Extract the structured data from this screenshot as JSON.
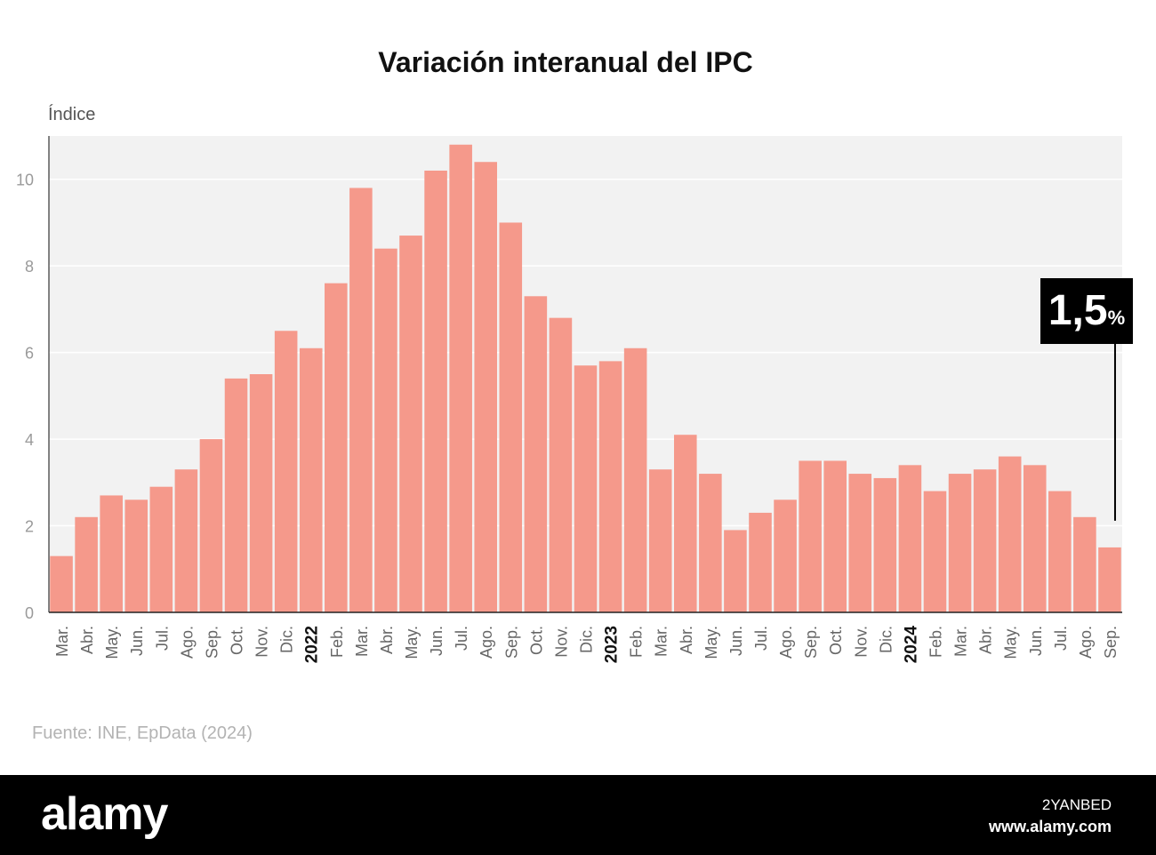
{
  "chart_data": {
    "type": "bar",
    "title": "Variación interanual del IPC",
    "ylabel": "Índice",
    "ylim": [
      0,
      11
    ],
    "yticks": [
      0,
      2,
      4,
      6,
      8,
      10
    ],
    "grid": true,
    "bar_color": "#f5998b",
    "plot_background": "#f2f2f2",
    "categories": [
      "Mar.",
      "Abr.",
      "May.",
      "Jun.",
      "Jul.",
      "Ago.",
      "Sep.",
      "Oct.",
      "Nov.",
      "Dic.",
      "2022",
      "Feb.",
      "Mar.",
      "Abr.",
      "May.",
      "Jun.",
      "Jul.",
      "Ago.",
      "Sep.",
      "Oct.",
      "Nov.",
      "Dic.",
      "2023",
      "Feb.",
      "Mar.",
      "Abr.",
      "May.",
      "Jun.",
      "Jul.",
      "Ago.",
      "Sep.",
      "Oct.",
      "Nov.",
      "Dic.",
      "2024",
      "Feb.",
      "Mar.",
      "Abr.",
      "May.",
      "Jun.",
      "Jul.",
      "Ago.",
      "Sep."
    ],
    "bold_categories": [
      "2022",
      "2023",
      "2024"
    ],
    "values": [
      1.3,
      2.2,
      2.7,
      2.6,
      2.9,
      3.3,
      4.0,
      5.4,
      5.5,
      6.5,
      6.1,
      7.6,
      9.8,
      8.4,
      8.7,
      10.2,
      10.8,
      10.4,
      9.0,
      7.3,
      6.8,
      5.7,
      5.8,
      6.1,
      3.3,
      4.1,
      3.2,
      1.9,
      2.3,
      2.6,
      3.5,
      3.5,
      3.2,
      3.1,
      3.4,
      2.8,
      3.2,
      3.3,
      3.6,
      3.4,
      2.8,
      2.2,
      1.5
    ],
    "annotation": {
      "value": "1,5",
      "unit": "%",
      "category_index": 42
    }
  },
  "source_text": "Fuente: INE, EpData (2024)",
  "footer": {
    "logo": "alamy",
    "image_id": "2YANBED",
    "site": "www.alamy.com"
  }
}
